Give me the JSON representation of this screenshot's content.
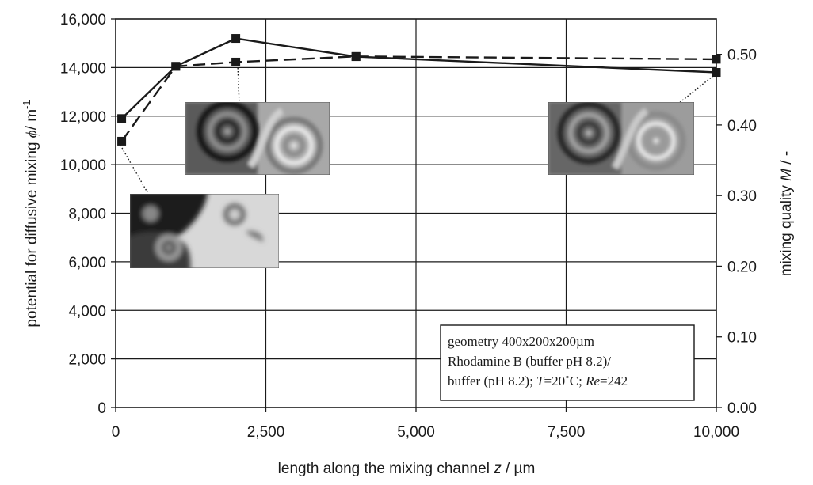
{
  "chart_data": {
    "type": "line",
    "xlabel": {
      "text": "length along the mixing channel ",
      "var": "z",
      "unit": " / µm"
    },
    "ylabel_left": {
      "text": "potential for diffusive mixing ",
      "var": "ϕ",
      "unit": "/ m",
      "sup": "-1"
    },
    "ylabel_right": {
      "text": "mixing quality ",
      "var": "M",
      "unit": " / -"
    },
    "xlim": [
      0,
      10000
    ],
    "ylim_left": [
      0,
      16000
    ],
    "ylim_right": [
      0,
      0.55
    ],
    "x_ticks": [
      0,
      2500,
      5000,
      7500,
      10000
    ],
    "x_tick_labels": [
      "0",
      "2,500",
      "5,000",
      "7,500",
      "10,000"
    ],
    "y_left_ticks": [
      0,
      2000,
      4000,
      6000,
      8000,
      10000,
      12000,
      14000,
      16000
    ],
    "y_left_tick_labels": [
      "0",
      "2,000",
      "4,000",
      "6,000",
      "8,000",
      "10,000",
      "12,000",
      "14,000",
      "16,000"
    ],
    "y_right_ticks": [
      0,
      0.1,
      0.2,
      0.3,
      0.4,
      0.5
    ],
    "y_right_tick_labels": [
      "0.00",
      "0.10",
      "0.20",
      "0.30",
      "0.40",
      "0.50"
    ],
    "grid": true,
    "series": [
      {
        "axis": "left",
        "style": "solid",
        "color": "#1a1a1a",
        "x": [
          100,
          1000,
          2000,
          4000,
          10000
        ],
        "y": [
          11900,
          14050,
          15200,
          14450,
          13800
        ]
      },
      {
        "axis": "right",
        "style": "dashed",
        "color": "#1a1a1a",
        "x": [
          100,
          1000,
          2000,
          4000,
          10000
        ],
        "y": [
          0.377,
          0.483,
          0.489,
          0.497,
          0.493
        ]
      }
    ],
    "annotation": {
      "line1": "geometry 400x200x200µm",
      "line2": "Rhodamine B (buffer pH 8.2)/",
      "line3a": "buffer (pH 8.2); ",
      "line3b": "T",
      "line3c": "=20˚C; ",
      "line3d": "Re",
      "line3e": "=242"
    }
  }
}
